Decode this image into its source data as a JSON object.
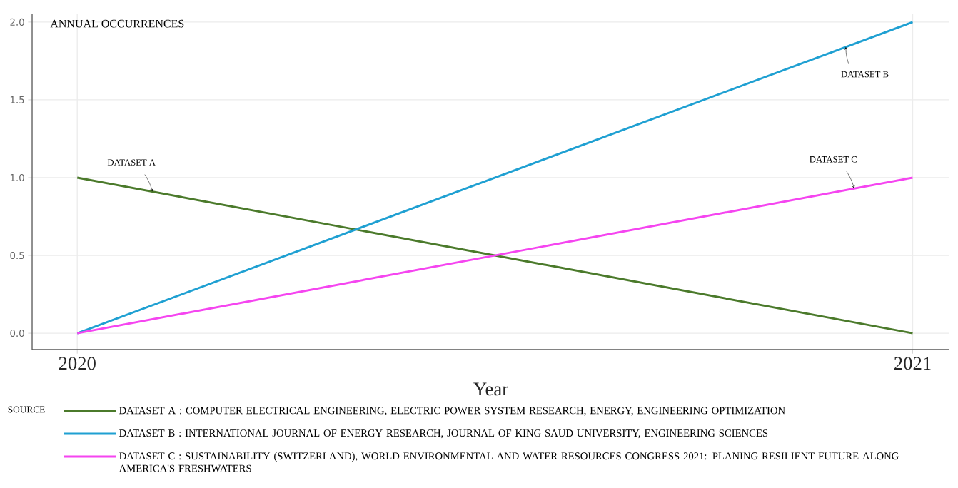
{
  "chart_data": {
    "type": "line",
    "xlabel": "Year",
    "ylabel": "ANNUAL OCCURRENCES",
    "legend_title": "SOURCE",
    "legend": "bottom",
    "grid": true,
    "marker": "none",
    "line_style": "solid",
    "x": [
      2020,
      2021
    ],
    "xlim": [
      2019.946,
      2021.044
    ],
    "xticks": [
      2020,
      2021
    ],
    "ylim": [
      -0.105,
      2.05
    ],
    "yticks": [
      {
        "value": 0,
        "label": "0.0"
      },
      {
        "value": 0.5,
        "label": "0.5"
      },
      {
        "value": 1,
        "label": "1.0"
      },
      {
        "value": 1.5,
        "label": "1.5"
      },
      {
        "value": 2,
        "label": "2.0"
      }
    ],
    "series": [
      {
        "name": "DATASET A : COMPUTER ELECTRICAL ENGINEERING, ELECTRIC POWER SYSTEM RESEARCH, ENERGY, ENGINEERING OPTIMIZATION",
        "color": "#4b7a2b",
        "values": [
          1,
          0
        ]
      },
      {
        "name": "DATASET B : INTERNATIONAL JOURNAL OF ENERGY RESEARCH, JOURNAL OF KING SAUD UNIVERSITY, ENGINEERING SCIENCES",
        "color": "#1fa0d2",
        "values": [
          0,
          2
        ]
      },
      {
        "name": "DATASET C : SUSTAINABILITY (SWITZERLAND), WORLD ENVIRONMENTAL AND WATER RESOURCES CONGRESS 2021: PLANING RESILIENT FUTURE ALONG AMERICA'S FRESHWATERS",
        "color": "#f545f0",
        "values": [
          0,
          1
        ]
      }
    ],
    "annotations": [
      {
        "text": "DATASET A",
        "x": 2020.09,
        "y": 0.91
      },
      {
        "text": "DATASET B",
        "x": 2020.92,
        "y": 1.84
      },
      {
        "text": "DATASET  C",
        "x": 2020.93,
        "y": 0.93
      }
    ]
  }
}
